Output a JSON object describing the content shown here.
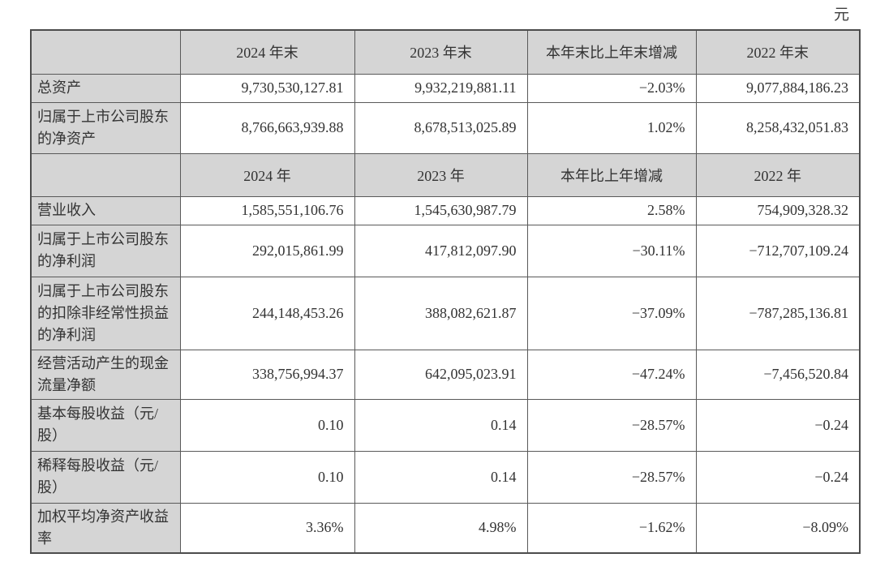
{
  "page": {
    "unit_label": "元"
  },
  "colors": {
    "header_fill": "#d5d5d5",
    "cell_fill": "#ffffff",
    "border": "#595959",
    "text": "#333333"
  },
  "table": {
    "sections": [
      {
        "header": [
          "",
          "2024 年末",
          "2023 年末",
          "本年末比上年末增减",
          "2022 年末"
        ],
        "rows": [
          {
            "label": "总资产",
            "values": [
              "9,730,530,127.81",
              "9,932,219,881.11",
              "−2.03%",
              "9,077,884,186.23"
            ]
          },
          {
            "label": "归属于上市公司股东的净资产",
            "values": [
              "8,766,663,939.88",
              "8,678,513,025.89",
              "1.02%",
              "8,258,432,051.83"
            ]
          }
        ]
      },
      {
        "header": [
          "",
          "2024 年",
          "2023 年",
          "本年比上年增减",
          "2022 年"
        ],
        "rows": [
          {
            "label": "营业收入",
            "values": [
              "1,585,551,106.76",
              "1,545,630,987.79",
              "2.58%",
              "754,909,328.32"
            ]
          },
          {
            "label": "归属于上市公司股东的净利润",
            "values": [
              "292,015,861.99",
              "417,812,097.90",
              "−30.11%",
              "−712,707,109.24"
            ]
          },
          {
            "label": "归属于上市公司股东的扣除非经常性损益的净利润",
            "values": [
              "244,148,453.26",
              "388,082,621.87",
              "−37.09%",
              "−787,285,136.81"
            ]
          },
          {
            "label": "经营活动产生的现金流量净额",
            "values": [
              "338,756,994.37",
              "642,095,023.91",
              "−47.24%",
              "−7,456,520.84"
            ]
          },
          {
            "label": "基本每股收益（元/股）",
            "values": [
              "0.10",
              "0.14",
              "−28.57%",
              "−0.24"
            ]
          },
          {
            "label": "稀释每股收益（元/股）",
            "values": [
              "0.10",
              "0.14",
              "−28.57%",
              "−0.24"
            ]
          },
          {
            "label": "加权平均净资产收益率",
            "values": [
              "3.36%",
              "4.98%",
              "−1.62%",
              "−8.09%"
            ]
          }
        ]
      }
    ]
  }
}
